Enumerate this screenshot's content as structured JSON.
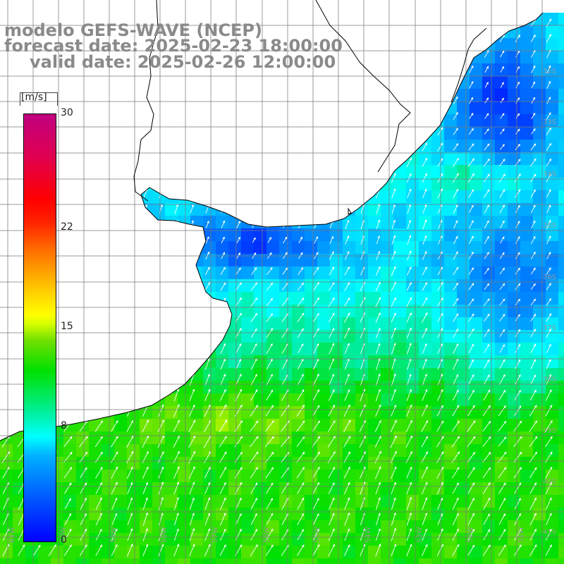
{
  "title": {
    "line1": "modelo GEFS-WAVE (NCEP)",
    "line2": "forecast date: 2025-02-23 18:00:00",
    "line3": "valid date: 2025-02-26 12:00:00"
  },
  "legend": {
    "unit": "[m/s]",
    "min": 0,
    "max": 30,
    "ticks": [
      {
        "label": "30",
        "value": 30
      },
      {
        "label": "22",
        "value": 22
      },
      {
        "label": "15",
        "value": 15
      },
      {
        "label": "8",
        "value": 8
      },
      {
        "label": "0",
        "value": 0
      }
    ]
  },
  "colors": {
    "calm": "#0000ff",
    "low": "#00ffff",
    "mid": "#00e000",
    "high": "#ffff00",
    "strong": "#ff0000",
    "extreme": "#c00080",
    "land": "#ffffff",
    "grid": "#7a7a7a",
    "coast": "#000000",
    "arrow": "#ffffff"
  },
  "lat_labels": [
    "32S",
    "33S",
    "34S",
    "35S",
    "36S",
    "37S",
    "38S",
    "39S",
    "40S",
    "41S"
  ],
  "lon_labels": [
    "61W",
    "60W",
    "59W",
    "58W",
    "57W",
    "56W",
    "55W",
    "54W",
    "53W",
    "52W",
    "51W"
  ]
}
